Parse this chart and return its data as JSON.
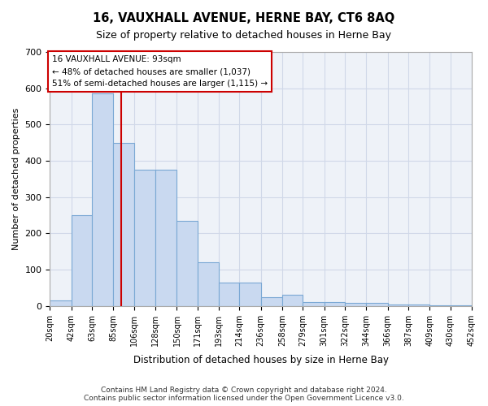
{
  "title": "16, VAUXHALL AVENUE, HERNE BAY, CT6 8AQ",
  "subtitle": "Size of property relative to detached houses in Herne Bay",
  "xlabel": "Distribution of detached houses by size in Herne Bay",
  "ylabel": "Number of detached properties",
  "bin_edges": [
    20,
    42,
    63,
    85,
    106,
    128,
    150,
    171,
    193,
    214,
    236,
    258,
    279,
    301,
    322,
    344,
    366,
    387,
    409,
    430,
    452
  ],
  "bar_heights": [
    15,
    250,
    585,
    450,
    375,
    375,
    235,
    120,
    65,
    65,
    25,
    30,
    10,
    10,
    8,
    8,
    5,
    5,
    2,
    2
  ],
  "bar_color": "#c9d9f0",
  "bar_edge_color": "#7aa8d4",
  "property_size": 93,
  "red_line_color": "#cc0000",
  "annotation_text": "16 VAUXHALL AVENUE: 93sqm\n← 48% of detached houses are smaller (1,037)\n51% of semi-detached houses are larger (1,115) →",
  "annotation_box_color": "#ffffff",
  "annotation_box_edge_color": "#cc0000",
  "grid_color": "#d0d8e8",
  "background_color": "#eef2f8",
  "ylim": [
    0,
    700
  ],
  "footer": "Contains HM Land Registry data © Crown copyright and database right 2024.\nContains public sector information licensed under the Open Government Licence v3.0.",
  "tick_labels": [
    "20sqm",
    "42sqm",
    "63sqm",
    "85sqm",
    "106sqm",
    "128sqm",
    "150sqm",
    "171sqm",
    "193sqm",
    "214sqm",
    "236sqm",
    "258sqm",
    "279sqm",
    "301sqm",
    "322sqm",
    "344sqm",
    "366sqm",
    "387sqm",
    "409sqm",
    "430sqm",
    "452sqm"
  ],
  "yticks": [
    0,
    100,
    200,
    300,
    400,
    500,
    600,
    700
  ]
}
